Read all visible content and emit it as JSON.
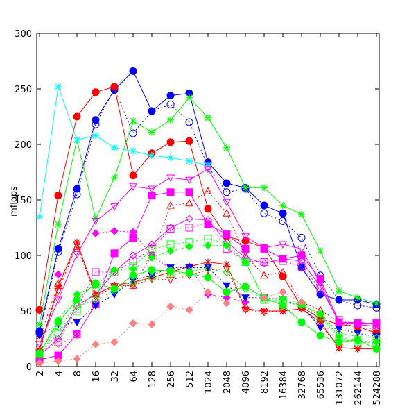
{
  "chart_data": {
    "type": "line",
    "title": "",
    "xlabel": "",
    "ylabel": "mflops",
    "ylim": [
      0,
      300
    ],
    "yticks": [
      "0",
      "50",
      "100",
      "150",
      "200",
      "250",
      "300"
    ],
    "categories": [
      "2",
      "4",
      "8",
      "16",
      "32",
      "64",
      "128",
      "256",
      "512",
      "1024",
      "2048",
      "4096",
      "8192",
      "16384",
      "32768",
      "65536",
      "131072",
      "262144",
      "524288"
    ],
    "grid": false,
    "legend": "none",
    "series": [
      {
        "color": "#0000ff",
        "style": "solid",
        "marker": "filled-circle",
        "values": [
          32,
          106,
          160,
          222,
          249,
          266,
          230,
          244,
          246,
          184,
          165,
          161,
          145,
          138,
          89,
          65,
          60,
          60,
          56
        ]
      },
      {
        "color": "#0000ff",
        "style": "dotted",
        "marker": "open-circle",
        "values": [
          30,
          103,
          155,
          218,
          250,
          210,
          230,
          236,
          220,
          180,
          157,
          160,
          138,
          131,
          116,
          82,
          60,
          55,
          53
        ]
      },
      {
        "color": "#ff0000",
        "style": "solid",
        "marker": "filled-circle",
        "values": [
          51,
          154,
          225,
          247,
          252,
          172,
          192,
          202,
          203,
          142,
          117,
          113,
          107,
          81,
          54,
          43,
          38,
          36,
          30
        ]
      },
      {
        "color": "#00ff00",
        "style": "solid",
        "marker": "star",
        "values": [
          38,
          128,
          204,
          133,
          170,
          221,
          211,
          222,
          242,
          224,
          197,
          161,
          161,
          145,
          137,
          104,
          68,
          62,
          57
        ]
      },
      {
        "color": "#00ffff",
        "style": "solid",
        "marker": "star",
        "values": [
          135,
          252,
          204,
          208,
          197,
          194,
          190,
          188,
          185,
          181,
          null,
          null,
          null,
          null,
          null,
          null,
          null,
          null,
          null
        ]
      },
      {
        "color": "#ff00ff",
        "style": "solid",
        "marker": "open-triangle-down",
        "values": [
          20,
          60,
          101,
          131,
          144,
          162,
          160,
          170,
          168,
          178,
          148,
          117,
          107,
          110,
          106,
          75,
          39,
          40,
          38
        ]
      },
      {
        "color": "#ff0000",
        "style": "dotted",
        "marker": "open-triangle-up",
        "values": [
          25,
          75,
          108,
          65,
          73,
          73,
          100,
          145,
          147,
          158,
          138,
          100,
          82,
          85,
          58,
          51,
          40,
          35,
          34
        ]
      },
      {
        "color": "#ff00ff",
        "style": "solid",
        "marker": "filled-square",
        "values": [
          6,
          10,
          29,
          56,
          102,
          116,
          154,
          157,
          157,
          128,
          119,
          106,
          106,
          97,
          100,
          79,
          40,
          39,
          39
        ]
      },
      {
        "color": "#ff00ff",
        "style": "dotted",
        "marker": "open-square",
        "values": [
          12,
          22,
          52,
          85,
          85,
          95,
          106,
          124,
          125,
          130,
          106,
          95,
          94,
          95,
          90,
          70,
          42,
          38,
          36
        ]
      },
      {
        "color": "#ff00ff",
        "style": "dotted",
        "marker": "filled-diamond",
        "values": [
          null,
          83,
          null,
          120,
          122,
          121,
          100,
          88,
          90,
          65,
          62,
          58,
          null,
          null,
          null,
          null,
          null,
          null,
          null
        ]
      },
      {
        "color": "#ff00ff",
        "style": "solid",
        "marker": "open-diamond",
        "values": [
          10,
          25,
          55,
          65,
          85,
          100,
          110,
          125,
          133,
          132,
          112,
          98,
          93,
          97,
          95,
          72,
          40,
          38,
          36
        ]
      },
      {
        "color": "#ff0000",
        "style": "solid",
        "marker": "star",
        "values": [
          15,
          72,
          112,
          65,
          73,
          76,
          80,
          85,
          90,
          94,
          92,
          52,
          50,
          50,
          52,
          40,
          17,
          16,
          16
        ]
      },
      {
        "color": "#ff0000",
        "style": "dotted",
        "marker": "open-triangle-down",
        "values": [
          16,
          68,
          110,
          63,
          72,
          73,
          79,
          78,
          82,
          87,
          88,
          51,
          49,
          50,
          52,
          38,
          17,
          16,
          16
        ]
      },
      {
        "color": "#0000ff",
        "style": "dotted",
        "marker": "filled-triangle-down",
        "values": [
          28,
          38,
          40,
          55,
          65,
          78,
          82,
          89,
          89,
          89,
          73,
          62,
          62,
          60,
          55,
          35,
          34,
          30,
          27
        ]
      },
      {
        "color": "#00ff00",
        "style": "solid",
        "marker": "filled-circle",
        "values": [
          12,
          40,
          60,
          75,
          70,
          82,
          87,
          86,
          84,
          80,
          67,
          72,
          62,
          55,
          40,
          28,
          22,
          24,
          16
        ]
      },
      {
        "color": "#00ff00",
        "style": "dotted",
        "marker": "filled-diamond",
        "values": [
          12,
          42,
          65,
          73,
          87,
          88,
          98,
          104,
          108,
          109,
          109,
          94,
          62,
          61,
          56,
          47,
          27,
          23,
          22
        ]
      },
      {
        "color": "#00ff00",
        "style": "dotted",
        "marker": "open-diamond",
        "values": [
          10,
          35,
          55,
          60,
          68,
          75,
          80,
          82,
          86,
          88,
          85,
          70,
          60,
          58,
          55,
          48,
          30,
          27,
          26
        ]
      },
      {
        "color": "#00ff00",
        "style": "dotted",
        "marker": "open-square",
        "values": [
          11,
          30,
          50,
          68,
          85,
          90,
          105,
          110,
          112,
          115,
          111,
          94,
          60,
          59,
          56,
          45,
          25,
          22,
          21
        ]
      },
      {
        "color": "#ff8080",
        "style": "dotted",
        "marker": "filled-diamond",
        "values": [
          3,
          5,
          7,
          20,
          22,
          39,
          38,
          54,
          51,
          67,
          57,
          null,
          62,
          67,
          58,
          null,
          null,
          null,
          null
        ]
      },
      {
        "color": "#ff8080",
        "style": "dotted",
        "marker": "open-diamond",
        "values": [
          null,
          20,
          28,
          null,
          null,
          null,
          null,
          null,
          null,
          null,
          null,
          null,
          null,
          null,
          null,
          null,
          null,
          null,
          null
        ]
      }
    ]
  }
}
